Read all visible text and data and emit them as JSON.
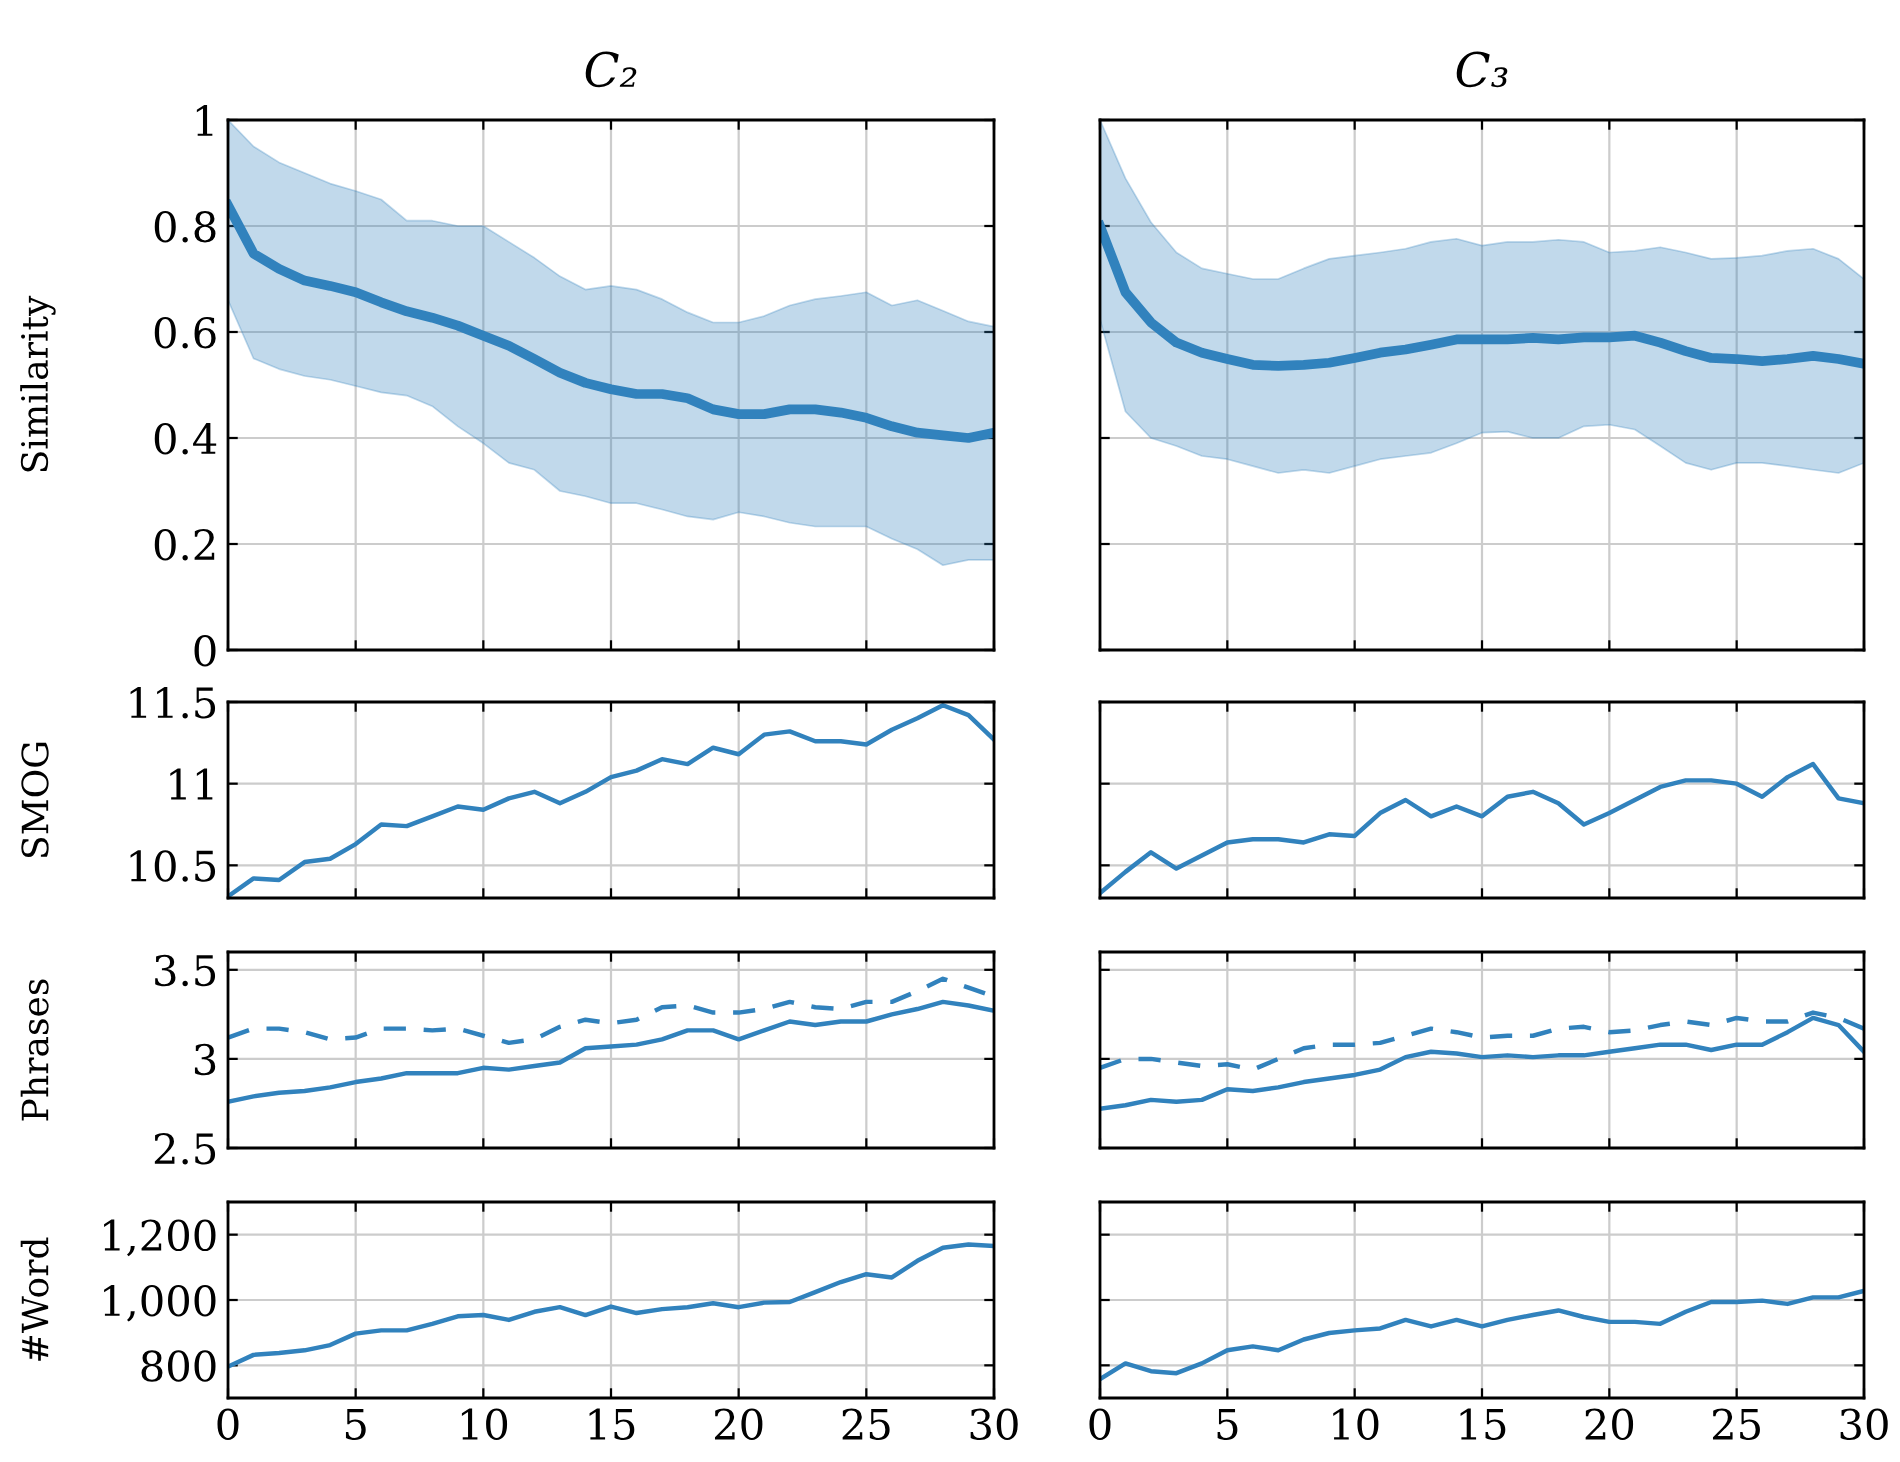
{
  "chart_data": [
    {
      "type": "line",
      "title": "C₂",
      "ylabel": "Similarity",
      "x": [
        0,
        1,
        2,
        3,
        4,
        5,
        6,
        7,
        8,
        9,
        10,
        11,
        12,
        13,
        14,
        15,
        16,
        17,
        18,
        19,
        20,
        21,
        22,
        23,
        24,
        25,
        26,
        27,
        28,
        29,
        30
      ],
      "xlim": [
        0,
        30
      ],
      "xticks": [
        0,
        5,
        10,
        15,
        20,
        25,
        30
      ],
      "ylim": [
        0,
        1
      ],
      "yticks": [
        0,
        0.2,
        0.4,
        0.6,
        0.8,
        1
      ],
      "grid": true,
      "tick_labels": "y",
      "series": [
        {
          "color": "#3182bd",
          "values": [
            0.839,
            0.748,
            0.719,
            0.697,
            0.687,
            0.675,
            0.656,
            0.639,
            0.627,
            0.612,
            0.593,
            0.574,
            0.549,
            0.523,
            0.504,
            0.492,
            0.483,
            0.483,
            0.475,
            0.454,
            0.445,
            0.445,
            0.454,
            0.454,
            0.448,
            0.438,
            0.422,
            0.41,
            0.405,
            0.4,
            0.41
          ],
          "lower": [
            0.66,
            0.55,
            0.53,
            0.517,
            0.51,
            0.498,
            0.486,
            0.48,
            0.46,
            0.422,
            0.39,
            0.353,
            0.34,
            0.3,
            0.29,
            0.277,
            0.277,
            0.265,
            0.252,
            0.246,
            0.26,
            0.252,
            0.24,
            0.233,
            0.233,
            0.233,
            0.21,
            0.19,
            0.16,
            0.17,
            0.17
          ],
          "upper": [
            1.0,
            0.95,
            0.92,
            0.9,
            0.88,
            0.866,
            0.85,
            0.81,
            0.81,
            0.8,
            0.8,
            0.77,
            0.74,
            0.705,
            0.68,
            0.687,
            0.68,
            0.662,
            0.637,
            0.618,
            0.618,
            0.63,
            0.65,
            0.662,
            0.668,
            0.675,
            0.65,
            0.66,
            0.64,
            0.62,
            0.61
          ]
        }
      ]
    },
    {
      "type": "line",
      "title": "C₃",
      "x": [
        0,
        1,
        2,
        3,
        4,
        5,
        6,
        7,
        8,
        9,
        10,
        11,
        12,
        13,
        14,
        15,
        16,
        17,
        18,
        19,
        20,
        21,
        22,
        23,
        24,
        25,
        26,
        27,
        28,
        29,
        30
      ],
      "xlim": [
        0,
        30
      ],
      "xticks": [
        0,
        5,
        10,
        15,
        20,
        25,
        30
      ],
      "ylim": [
        0,
        1
      ],
      "yticks": [
        0,
        0.2,
        0.4,
        0.6,
        0.8,
        1
      ],
      "grid": true,
      "tick_labels": false,
      "series": [
        {
          "color": "#3182bd",
          "values": [
            0.8,
            0.675,
            0.618,
            0.58,
            0.561,
            0.549,
            0.538,
            0.536,
            0.538,
            0.542,
            0.551,
            0.561,
            0.567,
            0.576,
            0.586,
            0.586,
            0.586,
            0.589,
            0.586,
            0.59,
            0.59,
            0.593,
            0.58,
            0.564,
            0.551,
            0.549,
            0.545,
            0.549,
            0.555,
            0.549,
            0.54
          ],
          "lower": [
            0.624,
            0.45,
            0.4,
            0.385,
            0.366,
            0.36,
            0.347,
            0.334,
            0.34,
            0.334,
            0.347,
            0.36,
            0.366,
            0.372,
            0.39,
            0.41,
            0.412,
            0.4,
            0.4,
            0.422,
            0.425,
            0.416,
            0.385,
            0.353,
            0.34,
            0.353,
            0.353,
            0.347,
            0.34,
            0.334,
            0.353
          ],
          "upper": [
            1.0,
            0.89,
            0.807,
            0.75,
            0.72,
            0.71,
            0.7,
            0.7,
            0.72,
            0.738,
            0.744,
            0.75,
            0.757,
            0.77,
            0.776,
            0.763,
            0.77,
            0.77,
            0.774,
            0.77,
            0.75,
            0.753,
            0.76,
            0.75,
            0.738,
            0.74,
            0.744,
            0.753,
            0.757,
            0.738,
            0.7
          ]
        }
      ]
    },
    {
      "type": "line",
      "ylabel": "SMOG",
      "x": [
        0,
        1,
        2,
        3,
        4,
        5,
        6,
        7,
        8,
        9,
        10,
        11,
        12,
        13,
        14,
        15,
        16,
        17,
        18,
        19,
        20,
        21,
        22,
        23,
        24,
        25,
        26,
        27,
        28,
        29,
        30
      ],
      "xlim": [
        0,
        30
      ],
      "xticks": [
        0,
        5,
        10,
        15,
        20,
        25,
        30
      ],
      "ylim": [
        10.3,
        11.5
      ],
      "yticks": [
        10.5,
        11,
        11.5
      ],
      "grid": true,
      "tick_labels": "y",
      "series": [
        {
          "color": "#3182bd",
          "values": [
            10.31,
            10.42,
            10.41,
            10.52,
            10.54,
            10.63,
            10.75,
            10.74,
            10.8,
            10.86,
            10.84,
            10.91,
            10.95,
            10.88,
            10.95,
            11.04,
            11.08,
            11.15,
            11.12,
            11.22,
            11.18,
            11.3,
            11.32,
            11.26,
            11.26,
            11.24,
            11.33,
            11.4,
            11.48,
            11.42,
            11.27
          ]
        }
      ]
    },
    {
      "type": "line",
      "x": [
        0,
        1,
        2,
        3,
        4,
        5,
        6,
        7,
        8,
        9,
        10,
        11,
        12,
        13,
        14,
        15,
        16,
        17,
        18,
        19,
        20,
        21,
        22,
        23,
        24,
        25,
        26,
        27,
        28,
        29,
        30
      ],
      "xlim": [
        0,
        30
      ],
      "xticks": [
        0,
        5,
        10,
        15,
        20,
        25,
        30
      ],
      "ylim": [
        10.3,
        11.5
      ],
      "yticks": [
        10.5,
        11,
        11.5
      ],
      "grid": true,
      "tick_labels": false,
      "series": [
        {
          "color": "#3182bd",
          "values": [
            10.33,
            10.46,
            10.58,
            10.48,
            10.56,
            10.64,
            10.66,
            10.66,
            10.64,
            10.69,
            10.68,
            10.82,
            10.9,
            10.8,
            10.86,
            10.8,
            10.92,
            10.95,
            10.88,
            10.75,
            10.82,
            10.9,
            10.98,
            11.02,
            11.02,
            11.0,
            10.92,
            11.04,
            11.12,
            10.91,
            10.88
          ]
        }
      ]
    },
    {
      "type": "line",
      "ylabel": "Phrases",
      "x": [
        0,
        1,
        2,
        3,
        4,
        5,
        6,
        7,
        8,
        9,
        10,
        11,
        12,
        13,
        14,
        15,
        16,
        17,
        18,
        19,
        20,
        21,
        22,
        23,
        24,
        25,
        26,
        27,
        28,
        29,
        30
      ],
      "xlim": [
        0,
        30
      ],
      "xticks": [
        0,
        5,
        10,
        15,
        20,
        25,
        30
      ],
      "ylim": [
        2.5,
        3.6
      ],
      "yticks": [
        2.5,
        3,
        3.5
      ],
      "grid": true,
      "tick_labels": "y",
      "series": [
        {
          "color": "#3182bd",
          "line_style": "solid",
          "values": [
            2.76,
            2.79,
            2.81,
            2.82,
            2.84,
            2.87,
            2.89,
            2.92,
            2.92,
            2.92,
            2.95,
            2.94,
            2.96,
            2.98,
            3.06,
            3.07,
            3.08,
            3.11,
            3.16,
            3.16,
            3.11,
            3.16,
            3.21,
            3.19,
            3.21,
            3.21,
            3.25,
            3.28,
            3.32,
            3.3,
            3.27
          ]
        },
        {
          "color": "#3182bd",
          "line_style": "dashed",
          "values": [
            3.12,
            3.17,
            3.17,
            3.15,
            3.11,
            3.12,
            3.17,
            3.17,
            3.16,
            3.17,
            3.13,
            3.09,
            3.11,
            3.18,
            3.22,
            3.2,
            3.22,
            3.29,
            3.3,
            3.26,
            3.26,
            3.28,
            3.32,
            3.29,
            3.28,
            3.32,
            3.32,
            3.38,
            3.45,
            3.4,
            3.35
          ]
        }
      ]
    },
    {
      "type": "line",
      "x": [
        0,
        1,
        2,
        3,
        4,
        5,
        6,
        7,
        8,
        9,
        10,
        11,
        12,
        13,
        14,
        15,
        16,
        17,
        18,
        19,
        20,
        21,
        22,
        23,
        24,
        25,
        26,
        27,
        28,
        29,
        30
      ],
      "xlim": [
        0,
        30
      ],
      "xticks": [
        0,
        5,
        10,
        15,
        20,
        25,
        30
      ],
      "ylim": [
        2.5,
        3.6
      ],
      "yticks": [
        2.5,
        3,
        3.5
      ],
      "grid": true,
      "tick_labels": false,
      "series": [
        {
          "color": "#3182bd",
          "line_style": "solid",
          "values": [
            2.72,
            2.74,
            2.77,
            2.76,
            2.77,
            2.83,
            2.82,
            2.84,
            2.87,
            2.89,
            2.91,
            2.94,
            3.01,
            3.04,
            3.03,
            3.01,
            3.02,
            3.01,
            3.02,
            3.02,
            3.04,
            3.06,
            3.08,
            3.08,
            3.05,
            3.08,
            3.08,
            3.15,
            3.23,
            3.19,
            3.04
          ]
        },
        {
          "color": "#3182bd",
          "line_style": "dashed",
          "values": [
            2.95,
            3.0,
            3.0,
            2.98,
            2.96,
            2.97,
            2.94,
            3.0,
            3.06,
            3.08,
            3.08,
            3.09,
            3.13,
            3.17,
            3.15,
            3.12,
            3.13,
            3.13,
            3.17,
            3.18,
            3.15,
            3.16,
            3.19,
            3.21,
            3.19,
            3.23,
            3.21,
            3.21,
            3.26,
            3.23,
            3.17
          ]
        }
      ]
    },
    {
      "type": "line",
      "ylabel": "#Word",
      "x": [
        0,
        1,
        2,
        3,
        4,
        5,
        6,
        7,
        8,
        9,
        10,
        11,
        12,
        13,
        14,
        15,
        16,
        17,
        18,
        19,
        20,
        21,
        22,
        23,
        24,
        25,
        26,
        27,
        28,
        29,
        30
      ],
      "xlim": [
        0,
        30
      ],
      "xticks": [
        0,
        5,
        10,
        15,
        20,
        25,
        30
      ],
      "ylim": [
        700,
        1300
      ],
      "yticks": [
        800,
        {
          "value": 1000,
          "label": "1,000"
        },
        {
          "value": 1200,
          "label": "1,200"
        }
      ],
      "grid": true,
      "series": [
        {
          "color": "#3182bd",
          "values": [
            796,
            832,
            838,
            846,
            862,
            897,
            907,
            907,
            927,
            950,
            954,
            939,
            964,
            978,
            954,
            980,
            960,
            972,
            978,
            990,
            978,
            992,
            994,
            1024,
            1055,
            1079,
            1069,
            1120,
            1160,
            1170,
            1165
          ]
        }
      ]
    },
    {
      "type": "line",
      "x": [
        0,
        1,
        2,
        3,
        4,
        5,
        6,
        7,
        8,
        9,
        10,
        11,
        12,
        13,
        14,
        15,
        16,
        17,
        18,
        19,
        20,
        21,
        22,
        23,
        24,
        25,
        26,
        27,
        28,
        29,
        30
      ],
      "xlim": [
        0,
        30
      ],
      "xticks": [
        0,
        5,
        10,
        15,
        20,
        25,
        30
      ],
      "ylim": [
        700,
        1300
      ],
      "yticks": [
        {
          "value": 800,
          "label": null
        },
        {
          "value": 1000,
          "label": null
        },
        {
          "value": 1200,
          "label": null
        }
      ],
      "grid": true,
      "tick_labels": "x",
      "series": [
        {
          "color": "#3182bd",
          "values": [
            758,
            806,
            782,
            776,
            806,
            846,
            858,
            846,
            879,
            899,
            907,
            913,
            939,
            919,
            939,
            919,
            939,
            954,
            968,
            948,
            933,
            933,
            927,
            964,
            994,
            994,
            998,
            988,
            1008,
            1008,
            1028
          ]
        }
      ]
    }
  ]
}
